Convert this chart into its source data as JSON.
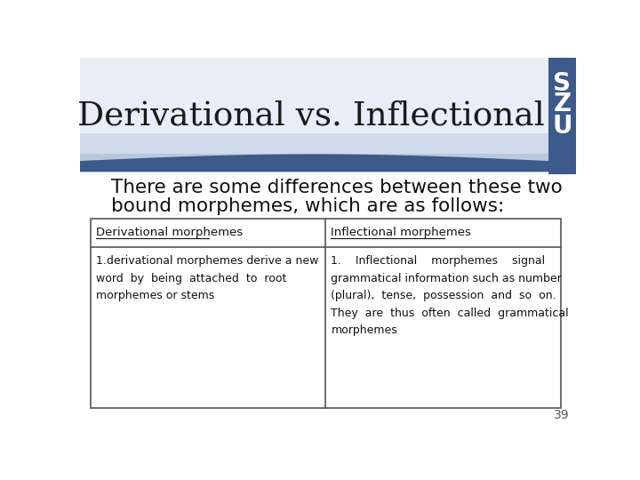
{
  "title": "Derivational vs. Inflectional",
  "szu_letters": [
    "S",
    "Z",
    "U"
  ],
  "body_text_line1": "There are some differences between these two",
  "body_text_line2": "bound morphemes, which are as follows:",
  "table_headers": [
    "Derivational morphemes",
    "Inflectional morphemes"
  ],
  "col1_text": "1.derivational morphemes derive a new\nword  by  being  attached  to  root\nmorphemes or stems",
  "col2_text": "1.    Inflectional    morphemes    signal\ngrammatical information such as number\n(plural),  tense,  possession  and  so  on.\nThey  are  thus  often  called  grammatical\nmorphemes",
  "page_number": "39",
  "bg_color": "#ffffff",
  "szu_bg_color": "#3d5a8a",
  "header_bg_light": "#e8eef8",
  "header_bg_mid": "#d0daea",
  "header_bg_dark": "#b8c8dc",
  "wave_color": "#3d5a8a",
  "title_color": "#1a1a1a",
  "body_color": "#111111",
  "table_border_color": "#555555"
}
